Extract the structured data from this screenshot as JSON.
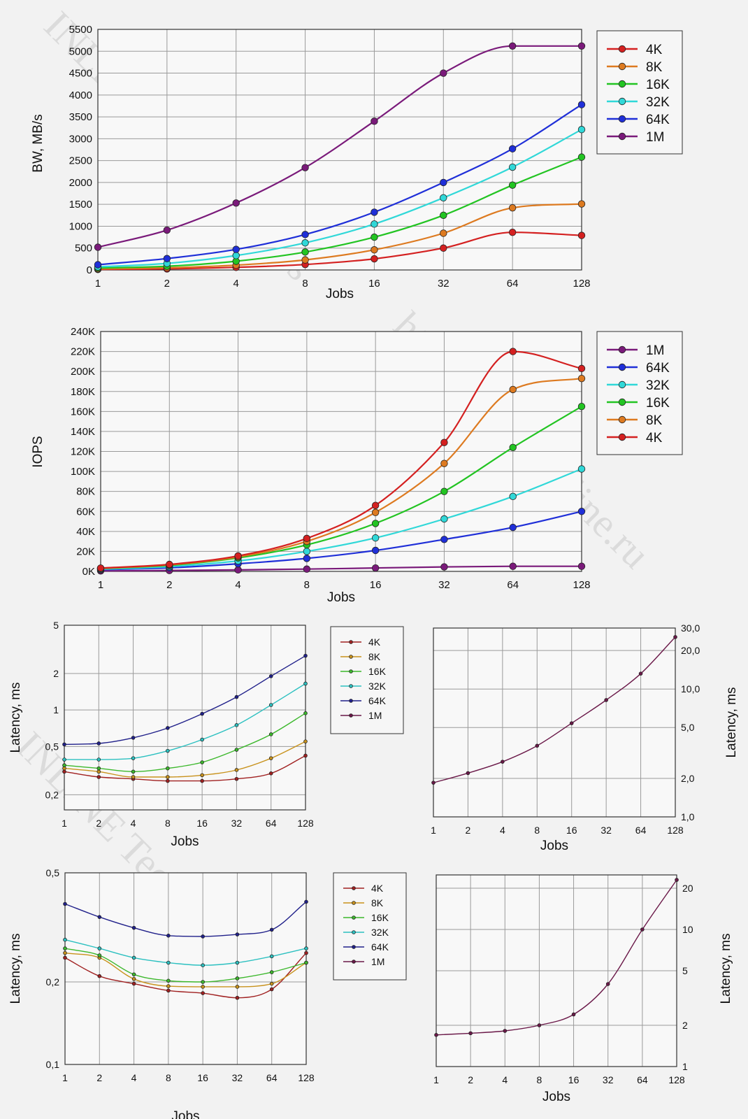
{
  "colors": {
    "4K": "#d42020",
    "8K": "#dd7a20",
    "16K": "#22c422",
    "32K": "#30d8d8",
    "64K": "#1f2fd8",
    "1M": "#7a1a7a"
  },
  "colors_small": {
    "4K": "#a02020",
    "8K": "#c8921c",
    "16K": "#3cb82c",
    "32K": "#2cc0c0",
    "64K": "#20208a",
    "1M": "#6a1848"
  },
  "watermark": {
    "text1": "INLINE Technologies",
    "text2": "http://www.in-line.ru",
    "text3": "INLINE Technologies"
  },
  "chart_data": [
    {
      "id": "bw",
      "type": "line",
      "title": "",
      "xlabel": "Jobs",
      "ylabel": "BW, MB/s",
      "x": [
        "1",
        "2",
        "4",
        "8",
        "16",
        "32",
        "64",
        "128"
      ],
      "ylim": [
        0,
        5500
      ],
      "yticks": [
        "0",
        "500",
        "1000",
        "1500",
        "2000",
        "2500",
        "3000",
        "3500",
        "4000",
        "4500",
        "5000",
        "5500"
      ],
      "legend": [
        "4K",
        "8K",
        "16K",
        "32K",
        "64K",
        "1M"
      ],
      "series": [
        {
          "name": "4K",
          "values": [
            12,
            25,
            60,
            125,
            255,
            500,
            860,
            790
          ]
        },
        {
          "name": "8K",
          "values": [
            25,
            50,
            110,
            230,
            460,
            840,
            1420,
            1510
          ]
        },
        {
          "name": "16K",
          "values": [
            45,
            85,
            200,
            410,
            750,
            1250,
            1940,
            2580
          ]
        },
        {
          "name": "32K",
          "values": [
            70,
            150,
            330,
            620,
            1050,
            1650,
            2350,
            3210
          ]
        },
        {
          "name": "64K",
          "values": [
            120,
            260,
            470,
            810,
            1320,
            2000,
            2770,
            3780
          ]
        },
        {
          "name": "1M",
          "values": [
            520,
            910,
            1530,
            2340,
            3400,
            4500,
            5120,
            5120
          ]
        }
      ]
    },
    {
      "id": "iops",
      "type": "line",
      "title": "",
      "xlabel": "Jobs",
      "ylabel": "IOPS",
      "x": [
        "1",
        "2",
        "4",
        "8",
        "16",
        "32",
        "64",
        "128"
      ],
      "ylim": [
        0,
        240000
      ],
      "yticks": [
        "0K",
        "20K",
        "40K",
        "60K",
        "80K",
        "100K",
        "120K",
        "140K",
        "160K",
        "180K",
        "200K",
        "220K",
        "240K"
      ],
      "legend": [
        "1M",
        "64K",
        "32K",
        "16K",
        "8K",
        "4K"
      ],
      "series": [
        {
          "name": "1M",
          "values": [
            500,
            900,
            1500,
            2300,
            3400,
            4500,
            5100,
            5100
          ]
        },
        {
          "name": "64K",
          "values": [
            1700,
            3600,
            7600,
            13000,
            21000,
            32000,
            44000,
            60000
          ]
        },
        {
          "name": "32K",
          "values": [
            2200,
            4800,
            10500,
            20000,
            33500,
            52500,
            75000,
            102500
          ]
        },
        {
          "name": "16K",
          "values": [
            2900,
            6000,
            13500,
            26500,
            48000,
            80000,
            124000,
            165000
          ]
        },
        {
          "name": "8K",
          "values": [
            3100,
            6500,
            14500,
            30000,
            59000,
            108000,
            182000,
            193000
          ]
        },
        {
          "name": "4K",
          "values": [
            3300,
            7000,
            15500,
            33000,
            66000,
            129000,
            220000,
            203000
          ]
        }
      ]
    },
    {
      "id": "lat1",
      "type": "line",
      "title": "",
      "xlabel": "Jobs",
      "ylabel": "Latency, ms",
      "x": [
        "1",
        "2",
        "4",
        "8",
        "16",
        "32",
        "64",
        "128"
      ],
      "ylim": [
        0.15,
        5
      ],
      "yscale": "log",
      "yticks": [
        "0,2",
        "0,5",
        "1",
        "2",
        "5"
      ],
      "legend": [
        "4K",
        "8K",
        "16K",
        "32K",
        "64K",
        "1M"
      ],
      "series": [
        {
          "name": "4K",
          "values": [
            0.31,
            0.28,
            0.27,
            0.26,
            0.26,
            0.27,
            0.3,
            0.42
          ]
        },
        {
          "name": "8K",
          "values": [
            0.33,
            0.31,
            0.28,
            0.28,
            0.29,
            0.32,
            0.4,
            0.55
          ]
        },
        {
          "name": "16K",
          "values": [
            0.35,
            0.33,
            0.31,
            0.33,
            0.37,
            0.47,
            0.63,
            0.94
          ]
        },
        {
          "name": "32K",
          "values": [
            0.39,
            0.39,
            0.4,
            0.46,
            0.57,
            0.75,
            1.1,
            1.65
          ]
        },
        {
          "name": "64K",
          "values": [
            0.52,
            0.53,
            0.59,
            0.71,
            0.93,
            1.28,
            1.9,
            2.8
          ]
        }
      ]
    },
    {
      "id": "lat1m",
      "type": "line",
      "title": "",
      "xlabel": "Jobs",
      "ylabel": "Latency, ms",
      "x": [
        "1",
        "2",
        "4",
        "8",
        "16",
        "32",
        "64",
        "128"
      ],
      "ylim": [
        1,
        30
      ],
      "yscale": "log",
      "yticks": [
        "1,0",
        "2,0",
        "5,0",
        "10,0",
        "20,0",
        "30,0"
      ],
      "series": [
        {
          "name": "1M",
          "values": [
            1.85,
            2.2,
            2.7,
            3.6,
            5.4,
            8.2,
            13.2,
            25.5
          ]
        }
      ]
    },
    {
      "id": "lat2",
      "type": "line",
      "title": "",
      "xlabel": "Jobs",
      "ylabel": "Latency, ms",
      "x": [
        "1",
        "2",
        "4",
        "8",
        "16",
        "32",
        "64",
        "128"
      ],
      "ylim": [
        0.1,
        0.5
      ],
      "yscale": "log",
      "yticks": [
        "0,1",
        "0,2",
        "0,5"
      ],
      "legend": [
        "4K",
        "8K",
        "16K",
        "32K",
        "64K",
        "1M"
      ],
      "series": [
        {
          "name": "4K",
          "values": [
            0.245,
            0.21,
            0.197,
            0.186,
            0.182,
            0.175,
            0.188,
            0.255
          ]
        },
        {
          "name": "8K",
          "values": [
            0.255,
            0.245,
            0.205,
            0.193,
            0.192,
            0.192,
            0.197,
            0.235
          ]
        },
        {
          "name": "16K",
          "values": [
            0.265,
            0.25,
            0.213,
            0.202,
            0.2,
            0.206,
            0.217,
            0.235
          ]
        },
        {
          "name": "32K",
          "values": [
            0.285,
            0.265,
            0.245,
            0.235,
            0.23,
            0.235,
            0.248,
            0.265
          ]
        },
        {
          "name": "64K",
          "values": [
            0.385,
            0.345,
            0.315,
            0.295,
            0.293,
            0.298,
            0.31,
            0.392
          ]
        }
      ]
    },
    {
      "id": "lat2m",
      "type": "line",
      "title": "",
      "xlabel": "Jobs",
      "ylabel": "Latency, ms",
      "x": [
        "1",
        "2",
        "4",
        "8",
        "16",
        "32",
        "64",
        "128"
      ],
      "ylim": [
        1,
        25
      ],
      "yscale": "log",
      "yticks": [
        "1",
        "2",
        "5",
        "10",
        "20"
      ],
      "series": [
        {
          "name": "1M",
          "values": [
            1.7,
            1.75,
            1.82,
            2.0,
            2.4,
            4.0,
            10.0,
            23.0
          ]
        }
      ]
    }
  ]
}
